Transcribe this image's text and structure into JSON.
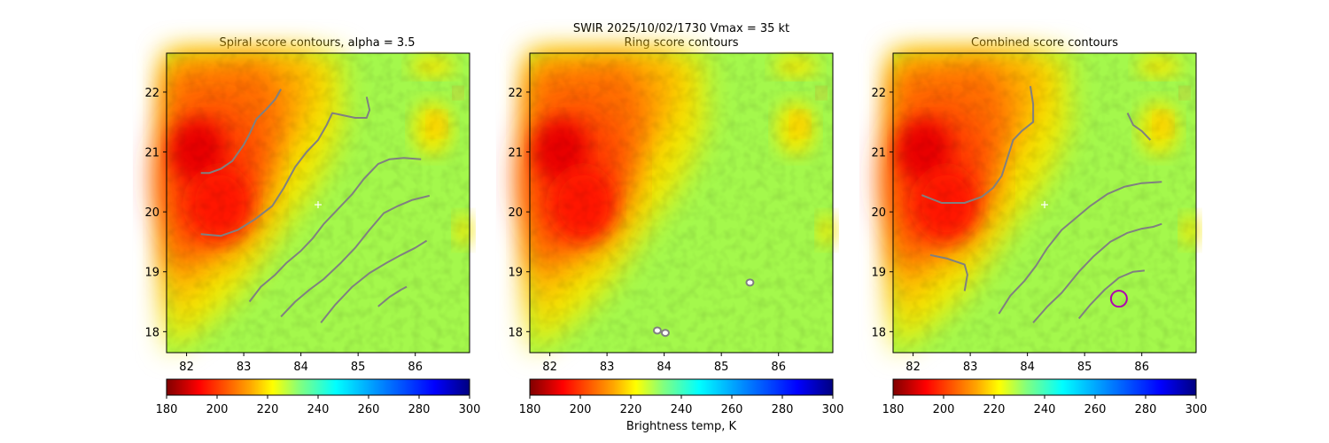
{
  "figure": {
    "suptitle_line1": "SWIR  2025/10/02/1730    Vmax = 35 kt",
    "colorbar_label": "Brightness temp, K",
    "colormap": "jet (reversed)",
    "colorbar": {
      "min": 180,
      "max": 300,
      "ticks": [
        "180",
        "200",
        "220",
        "240",
        "260",
        "280",
        "300"
      ],
      "stops": [
        {
          "v": 180,
          "c": "#800000"
        },
        {
          "v": 193,
          "c": "#ff0000"
        },
        {
          "v": 213,
          "c": "#ffa500"
        },
        {
          "v": 222,
          "c": "#ffff00"
        },
        {
          "v": 233,
          "c": "#80ff80"
        },
        {
          "v": 247,
          "c": "#00ffff"
        },
        {
          "v": 266,
          "c": "#0080ff"
        },
        {
          "v": 286,
          "c": "#0000ff"
        },
        {
          "v": 300,
          "c": "#000080"
        }
      ]
    },
    "contour_color": "#808080",
    "center_marker_color": "#ffffff",
    "best_point_color": "#b000b0"
  },
  "chart_data": [
    {
      "type": "heatmap",
      "title": "Spiral score contours, alpha =  3.5",
      "xlim": [
        81.65,
        86.95
      ],
      "ylim": [
        17.65,
        22.65
      ],
      "xticks": [
        "82",
        "83",
        "84",
        "85",
        "86"
      ],
      "yticks": [
        "18",
        "19",
        "20",
        "21",
        "22"
      ],
      "center_marker": {
        "x": 84.3,
        "y": 20.12,
        "symbol": "+"
      },
      "contours": [
        [
          [
            83.65,
            22.05
          ],
          [
            83.55,
            21.88
          ],
          [
            83.4,
            21.72
          ],
          [
            83.22,
            21.55
          ],
          [
            83.1,
            21.3
          ],
          [
            83.0,
            21.12
          ],
          [
            82.8,
            20.85
          ],
          [
            82.6,
            20.72
          ],
          [
            82.4,
            20.65
          ],
          [
            82.25,
            20.65
          ]
        ],
        [
          [
            82.25,
            19.63
          ],
          [
            82.6,
            19.6
          ],
          [
            82.9,
            19.7
          ],
          [
            83.2,
            19.88
          ],
          [
            83.5,
            20.1
          ],
          [
            83.7,
            20.4
          ],
          [
            83.9,
            20.75
          ],
          [
            84.1,
            21.0
          ],
          [
            84.3,
            21.2
          ],
          [
            84.45,
            21.45
          ],
          [
            84.55,
            21.65
          ],
          [
            84.7,
            21.62
          ],
          [
            84.95,
            21.57
          ],
          [
            85.15,
            21.57
          ],
          [
            85.2,
            21.7
          ],
          [
            85.15,
            21.92
          ]
        ],
        [
          [
            83.1,
            18.5
          ],
          [
            83.3,
            18.75
          ],
          [
            83.55,
            18.95
          ],
          [
            83.75,
            19.15
          ],
          [
            84.0,
            19.35
          ],
          [
            84.2,
            19.55
          ],
          [
            84.4,
            19.8
          ],
          [
            84.65,
            20.05
          ],
          [
            84.9,
            20.3
          ],
          [
            85.1,
            20.55
          ],
          [
            85.35,
            20.8
          ],
          [
            85.55,
            20.88
          ],
          [
            85.8,
            20.9
          ],
          [
            86.1,
            20.88
          ]
        ],
        [
          [
            83.65,
            18.25
          ],
          [
            83.9,
            18.5
          ],
          [
            84.15,
            18.7
          ],
          [
            84.4,
            18.88
          ],
          [
            84.7,
            19.15
          ],
          [
            84.95,
            19.4
          ],
          [
            85.2,
            19.7
          ],
          [
            85.45,
            19.98
          ],
          [
            85.7,
            20.1
          ],
          [
            85.95,
            20.2
          ],
          [
            86.25,
            20.27
          ]
        ],
        [
          [
            84.35,
            18.15
          ],
          [
            84.6,
            18.45
          ],
          [
            84.9,
            18.75
          ],
          [
            85.2,
            18.98
          ],
          [
            85.5,
            19.15
          ],
          [
            85.75,
            19.28
          ],
          [
            86.0,
            19.4
          ],
          [
            86.2,
            19.52
          ]
        ],
        [
          [
            85.35,
            18.42
          ],
          [
            85.55,
            18.58
          ],
          [
            85.75,
            18.7
          ],
          [
            85.85,
            18.75
          ]
        ]
      ],
      "colorbar_label": ""
    },
    {
      "type": "heatmap",
      "title": "Ring score contours",
      "title_above": "SWIR  2025/10/02/1730    Vmax = 35 kt",
      "xlim": [
        81.65,
        86.95
      ],
      "ylim": [
        17.65,
        22.65
      ],
      "xticks": [
        "82",
        "83",
        "84",
        "85",
        "86"
      ],
      "yticks": [
        "18",
        "19",
        "20",
        "21",
        "22"
      ],
      "rings": [
        {
          "x": 85.5,
          "y": 18.82
        },
        {
          "x": 83.88,
          "y": 18.02
        },
        {
          "x": 84.02,
          "y": 17.98
        }
      ],
      "colorbar_label": "Brightness temp, K"
    },
    {
      "type": "heatmap",
      "title": "Combined score contours",
      "xlim": [
        81.65,
        86.95
      ],
      "ylim": [
        17.65,
        22.65
      ],
      "xticks": [
        "82",
        "83",
        "84",
        "85",
        "86"
      ],
      "yticks": [
        "18",
        "19",
        "20",
        "21",
        "22"
      ],
      "center_marker": {
        "x": 84.3,
        "y": 20.12,
        "symbol": "+"
      },
      "best_point": {
        "x": 85.6,
        "y": 18.55
      },
      "contours": [
        [
          [
            84.05,
            22.1
          ],
          [
            84.1,
            21.8
          ],
          [
            84.1,
            21.5
          ],
          [
            83.9,
            21.35
          ],
          [
            83.75,
            21.2
          ],
          [
            83.65,
            20.9
          ],
          [
            83.55,
            20.6
          ],
          [
            83.4,
            20.4
          ],
          [
            83.2,
            20.25
          ],
          [
            82.9,
            20.15
          ],
          [
            82.5,
            20.15
          ],
          [
            82.15,
            20.28
          ]
        ],
        [
          [
            82.3,
            19.28
          ],
          [
            82.6,
            19.22
          ],
          [
            82.9,
            19.12
          ],
          [
            82.95,
            18.95
          ],
          [
            82.9,
            18.68
          ]
        ],
        [
          [
            83.5,
            18.3
          ],
          [
            83.7,
            18.6
          ],
          [
            83.95,
            18.85
          ],
          [
            84.15,
            19.1
          ],
          [
            84.35,
            19.4
          ],
          [
            84.6,
            19.7
          ],
          [
            84.85,
            19.9
          ],
          [
            85.1,
            20.1
          ],
          [
            85.4,
            20.3
          ],
          [
            85.7,
            20.42
          ],
          [
            86.0,
            20.48
          ],
          [
            86.35,
            20.5
          ]
        ],
        [
          [
            84.1,
            18.15
          ],
          [
            84.35,
            18.42
          ],
          [
            84.6,
            18.65
          ],
          [
            84.9,
            19.0
          ],
          [
            85.15,
            19.25
          ],
          [
            85.45,
            19.5
          ],
          [
            85.75,
            19.65
          ],
          [
            86.0,
            19.72
          ],
          [
            86.2,
            19.75
          ],
          [
            86.35,
            19.8
          ]
        ],
        [
          [
            84.9,
            18.22
          ],
          [
            85.1,
            18.45
          ],
          [
            85.35,
            18.7
          ],
          [
            85.6,
            18.9
          ],
          [
            85.85,
            19.0
          ],
          [
            86.05,
            19.02
          ]
        ],
        [
          [
            85.75,
            21.65
          ],
          [
            85.85,
            21.45
          ],
          [
            86.0,
            21.35
          ],
          [
            86.15,
            21.2
          ]
        ]
      ],
      "colorbar_label": ""
    }
  ]
}
